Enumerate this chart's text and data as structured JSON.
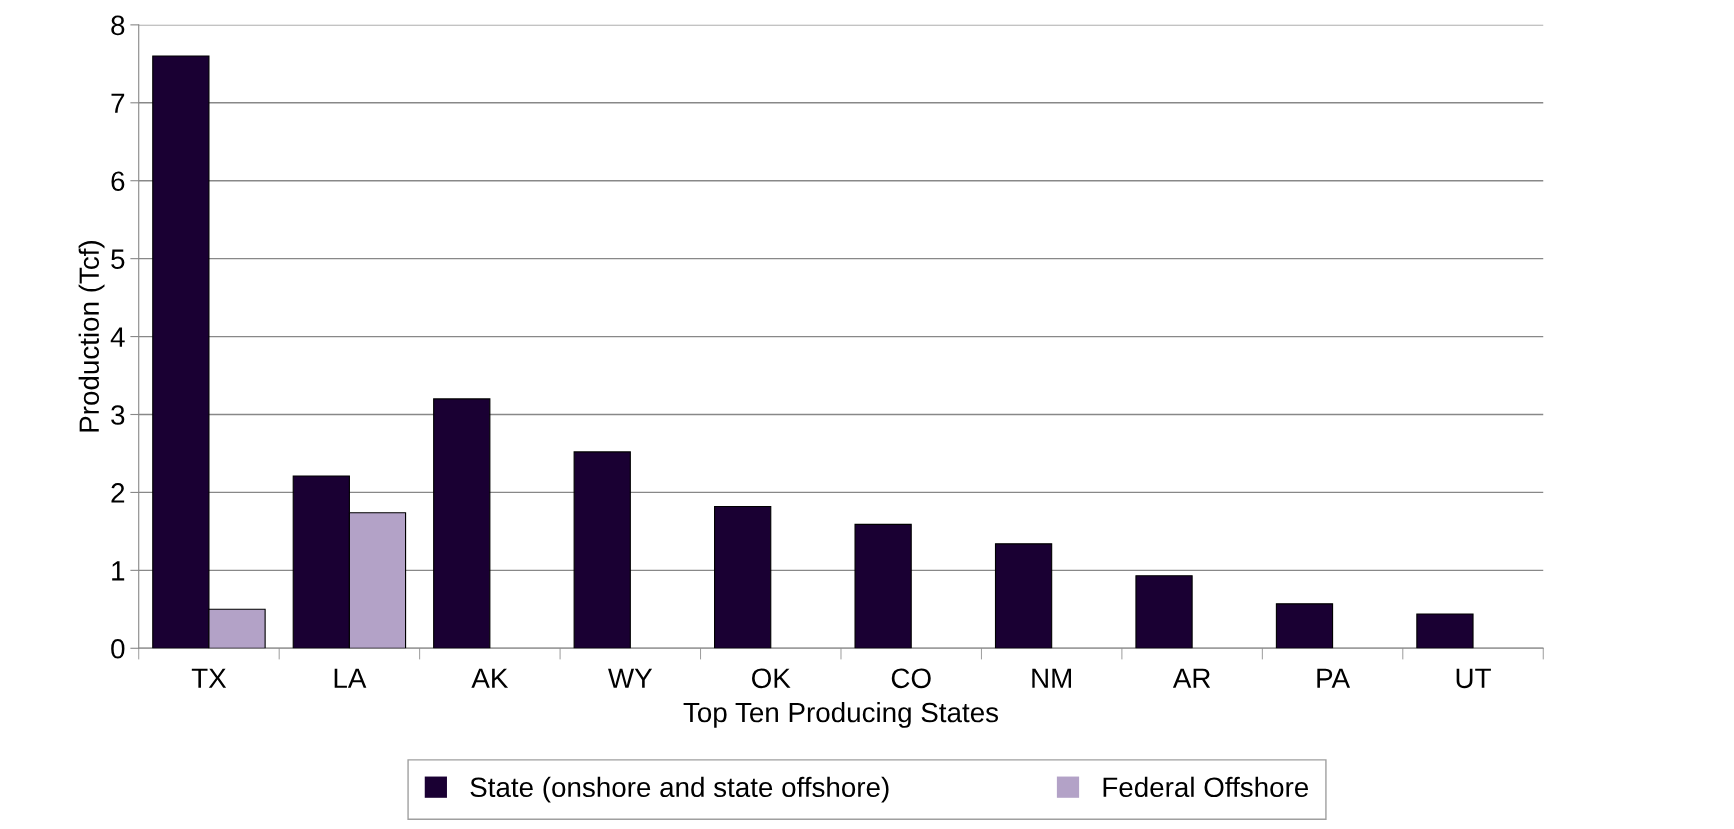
{
  "chart_data": {
    "type": "bar",
    "xlabel": "Top Ten Producing States",
    "ylabel": "Production (Tcf)",
    "categories": [
      "TX",
      "LA",
      "AK",
      "WY",
      "OK",
      "CO",
      "NM",
      "AR",
      "PA",
      "UT"
    ],
    "series": [
      {
        "name": "State (onshore and state offshore)",
        "color": "#1a0033",
        "values": [
          7.6,
          2.21,
          3.2,
          2.52,
          1.82,
          1.59,
          1.34,
          0.93,
          0.57,
          0.44
        ]
      },
      {
        "name": "Federal Offshore",
        "color": "#b3a2c7",
        "values": [
          0.5,
          1.74,
          null,
          null,
          null,
          null,
          null,
          null,
          null,
          null
        ]
      }
    ],
    "ylim": [
      0,
      8
    ],
    "yticks": [
      0,
      1,
      2,
      3,
      4,
      5,
      6,
      7,
      8
    ],
    "grid": "y",
    "legend": "bottom"
  }
}
